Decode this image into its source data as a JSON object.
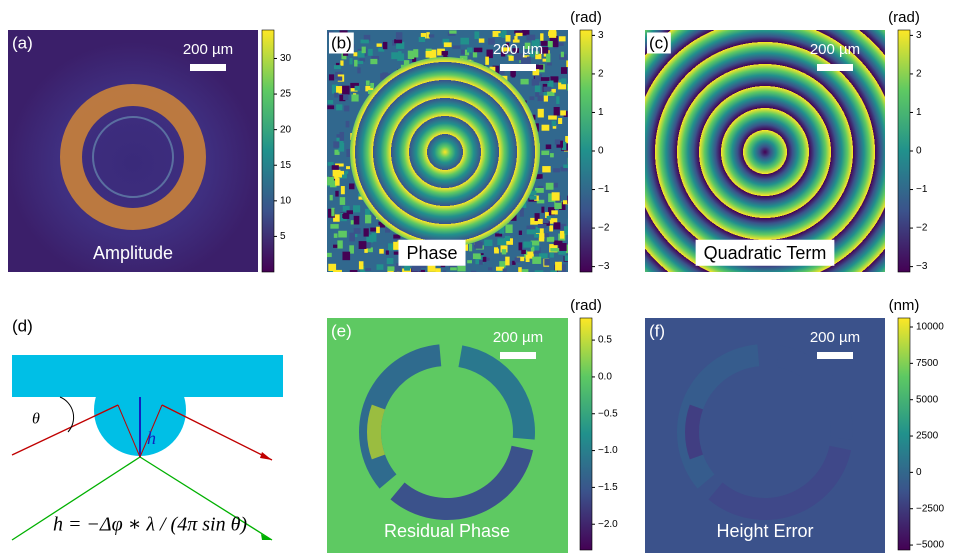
{
  "panels": [
    {
      "label": "(a)",
      "caption": "Amplitude",
      "scale": "200 µm",
      "colorbar": {
        "lim": [
          0,
          34
        ],
        "ticks": [
          5,
          10,
          15,
          20,
          25,
          30
        ]
      }
    },
    {
      "label": "(b)",
      "caption": "Phase",
      "scale": "200 µm",
      "unit": "(rad)",
      "colorbar": {
        "lim": [
          -3.14,
          3.14
        ],
        "ticks": [
          {
            "value": -3,
            "label": "−3"
          },
          {
            "value": -2,
            "label": "−2"
          },
          {
            "value": -1,
            "label": "−1"
          },
          0,
          1,
          2,
          3
        ]
      }
    },
    {
      "label": "(c)",
      "caption": "Quadratic Term",
      "scale": "200 µm",
      "unit": "(rad)",
      "colorbar": {
        "lim": [
          -3.14,
          3.14
        ],
        "ticks": [
          {
            "value": -3,
            "label": "−3"
          },
          {
            "value": -2,
            "label": "−2"
          },
          {
            "value": -1,
            "label": "−1"
          },
          0,
          1,
          2,
          3
        ]
      }
    },
    {
      "label": "(e)",
      "caption": "Residual Phase",
      "scale": "200 µm",
      "unit": "(rad)",
      "colorbar": {
        "lim": [
          -2.35,
          0.8
        ],
        "ticks": [
          {
            "value": -2.0,
            "label": "−2.0"
          },
          {
            "value": -1.5,
            "label": "−1.5"
          },
          {
            "value": -1.0,
            "label": "−1.0"
          },
          {
            "value": -0.5,
            "label": "−0.5"
          },
          {
            "value": 0,
            "label": "0.0"
          },
          0.5
        ]
      }
    },
    {
      "label": "(f)",
      "caption": "Height Error",
      "scale": "200 µm",
      "unit": "(nm)",
      "colorbar": {
        "lim": [
          -5340,
          10620
        ],
        "ticks": [
          {
            "value": -5000,
            "label": "−5000"
          },
          {
            "value": -2500,
            "label": "−2500"
          },
          0,
          2500,
          5000,
          7500,
          10000
        ]
      }
    }
  ],
  "diagram": {
    "label": "(d)",
    "angle": "θ",
    "height": "h",
    "formula": "h = −Δφ ∗ λ / (4π sin θ)"
  }
}
